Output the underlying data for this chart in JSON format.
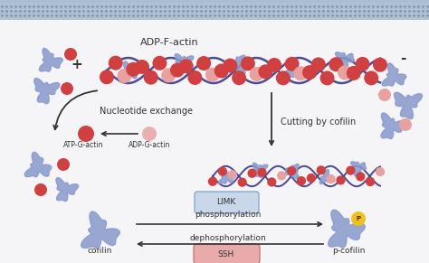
{
  "background_color": "#f5f5f8",
  "top_bar_color": "#a8bdd0",
  "actin_filament_color": "#3a3a8c",
  "actin_bead_color_dark": "#d04040",
  "actin_bead_color_light": "#e8a0a0",
  "cofilin_color": "#8899cc",
  "atp_g_actin_color": "#d04040",
  "adp_g_actin_color": "#e8b0b0",
  "phospho_circle_color": "#f0c020",
  "limk_box_color": "#c8d8e8",
  "ssh_box_color": "#e8aaaa",
  "arrow_color": "#333333",
  "text_color": "#333333",
  "title": "ADP-F-actin",
  "label_nucleotide": "Nucleotide exchange",
  "label_atp": "ATP-G-actin",
  "label_adp": "ADP-G-actin",
  "label_cutting": "Cutting by cofilin",
  "label_limk": "LIMK",
  "label_phosphorylation": "phosphorylation",
  "label_dephosphorylation": "dephosphorylation",
  "label_cofilin": "cofilin",
  "label_pcofilin": "p-cofilin",
  "label_ssh": "SSH",
  "label_plus": "+",
  "label_minus": "-"
}
